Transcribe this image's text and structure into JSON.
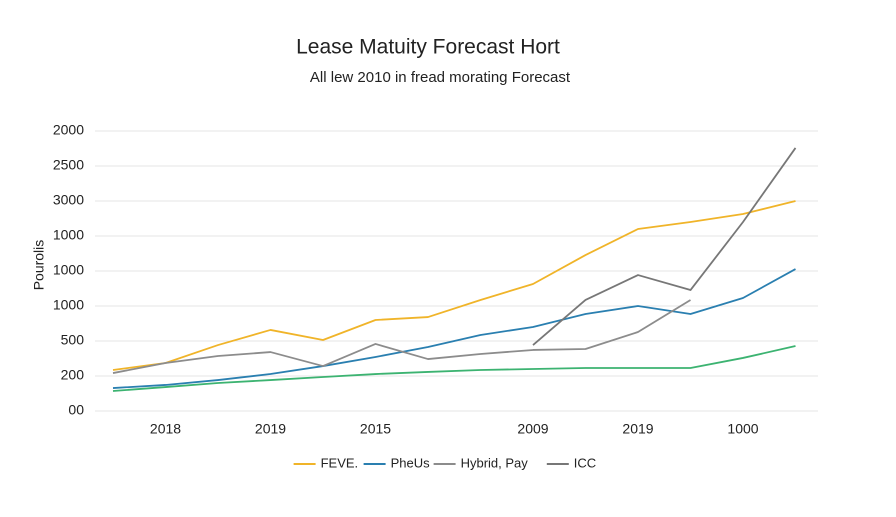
{
  "chart_data": {
    "type": "line",
    "title": "Lease Matuity Forecast Hort",
    "subtitle": "All lew 2010 in fread morating Forecast",
    "y_label": "Pourolis",
    "categories": [
      null,
      "2018",
      null,
      "2019",
      null,
      "2015",
      null,
      null,
      "2009",
      null,
      "2019",
      null,
      "1000",
      null
    ],
    "ylim": [
      0,
      2000
    ],
    "yticks": [
      {
        "value": 0,
        "label": "00"
      },
      {
        "value": 250,
        "label": "200"
      },
      500,
      {
        "value": 750,
        "label": "1000"
      },
      1000,
      {
        "value": 1250,
        "label": "1000"
      },
      {
        "value": 1500,
        "label": "3000"
      },
      {
        "value": 1750,
        "label": "2500"
      },
      2000
    ],
    "grid": true,
    "legend": "bottom",
    "series": [
      {
        "name": "FEVE.",
        "color": "#f0b429",
        "values": [
          293,
          343,
          471,
          579,
          507,
          650,
          671,
          793,
          907,
          1114,
          1300,
          1350,
          1407,
          1500
        ]
      },
      {
        "name": "PheUs",
        "color": "#2a7fb0",
        "values": [
          164,
          186,
          221,
          264,
          321,
          386,
          457,
          543,
          600,
          693,
          750,
          693,
          807,
          1014
        ]
      },
      {
        "name": "Hybrid, Pay",
        "color": "#8c8c8c",
        "values": [
          271,
          343,
          393,
          421,
          321,
          479,
          371,
          407,
          436,
          443,
          564,
          793,
          null,
          null
        ]
      },
      {
        "name": "ICC",
        "color": "#777777",
        "values": [
          null,
          null,
          null,
          null,
          null,
          null,
          null,
          null,
          471,
          793,
          971,
          864,
          1350,
          1879
        ]
      },
      {
        "color": "#3cb371",
        "values": [
          143,
          171,
          200,
          221,
          243,
          264,
          279,
          293,
          300,
          307,
          307,
          307,
          379,
          464
        ]
      }
    ]
  }
}
